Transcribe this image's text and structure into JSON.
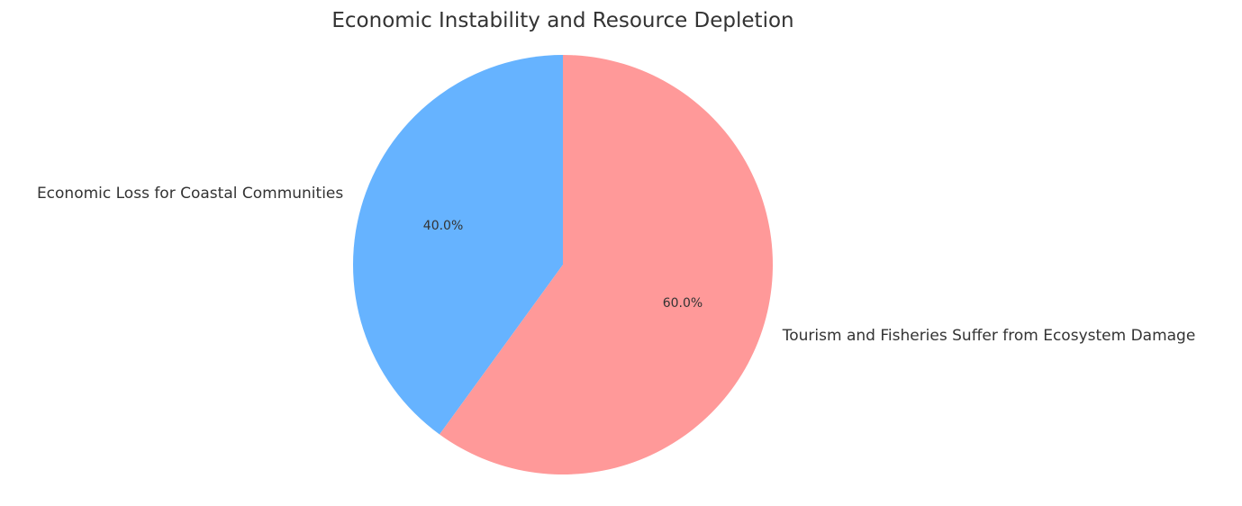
{
  "chart_data": {
    "type": "pie",
    "title": "Economic Instability and Resource Depletion",
    "start_angle_deg": 90,
    "direction": "counterclockwise",
    "slices": [
      {
        "label": "Economic Loss for Coastal Communities",
        "value": 40.0,
        "pct_label": "40.0%",
        "color": "#66b3ff"
      },
      {
        "label": "Tourism and Fisheries Suffer from Ecosystem Damage",
        "value": 60.0,
        "pct_label": "60.0%",
        "color": "#ff9999"
      }
    ]
  }
}
